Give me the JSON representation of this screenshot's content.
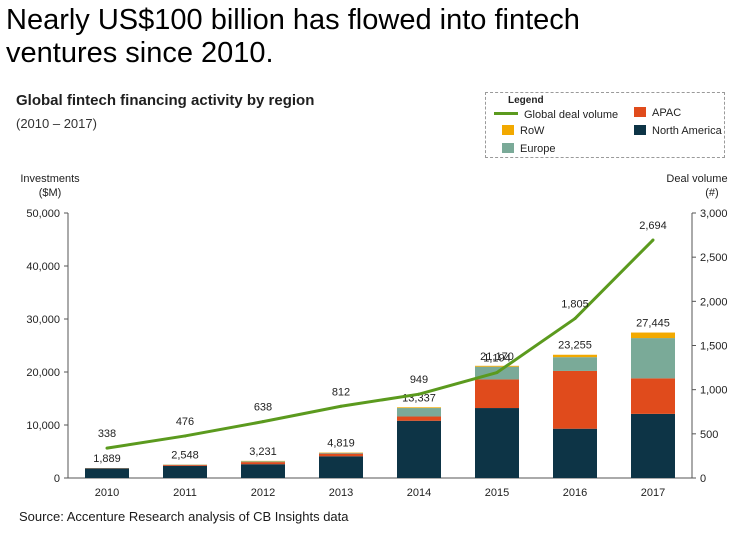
{
  "headline": {
    "line1": "Nearly US$100 billion has flowed into fintech",
    "line2": "ventures since 2010."
  },
  "source": "Source: Accenture Research analysis of CB Insights data",
  "legend": {
    "title": "Legend",
    "items": [
      {
        "label": "Global deal volume",
        "kind": "line",
        "color": "#5b9a1e"
      },
      {
        "label": "APAC",
        "kind": "box",
        "color": "#e04b1c"
      },
      {
        "label": "RoW",
        "kind": "box",
        "color": "#f2a900"
      },
      {
        "label": "North America",
        "kind": "box",
        "color": "#0d3446"
      },
      {
        "label": "Europe",
        "kind": "box",
        "color": "#7aaa98"
      }
    ]
  },
  "chart_data": {
    "type": "bar",
    "stacked": true,
    "title": "Global fintech financing activity by region",
    "subtitle": "(2010 – 2017)",
    "y_left_label": [
      "Investments",
      "($M)"
    ],
    "y_right_label": [
      "Deal volume",
      "(#)"
    ],
    "ylim_left": [
      0,
      50000
    ],
    "ylim_right": [
      0,
      3000
    ],
    "y_left_ticks": [
      "0",
      "10,000",
      "20,000",
      "30,000",
      "40,000",
      "50,000"
    ],
    "y_right_ticks": [
      "0",
      "500",
      "1,000",
      "1,500",
      "2,000",
      "2,500",
      "3,000"
    ],
    "categories": [
      "2010",
      "2011",
      "2012",
      "2013",
      "2014",
      "2015",
      "2016",
      "2017"
    ],
    "series": [
      {
        "name": "North America",
        "color": "#0d3446",
        "values": [
          1800,
          2300,
          2600,
          4100,
          10800,
          13200,
          9300,
          12100
        ]
      },
      {
        "name": "APAC",
        "color": "#e04b1c",
        "values": [
          50,
          150,
          400,
          500,
          800,
          5400,
          10900,
          6700
        ]
      },
      {
        "name": "Europe",
        "color": "#7aaa98",
        "values": [
          30,
          70,
          150,
          150,
          1600,
          2400,
          2600,
          7600
        ]
      },
      {
        "name": "RoW",
        "color": "#f2a900",
        "values": [
          9,
          28,
          81,
          69,
          137,
          170,
          455,
          1045
        ]
      }
    ],
    "totals": [
      "1,889",
      "2,548",
      "3,231",
      "4,819",
      "13,337",
      "21,170",
      "23,255",
      "27,445"
    ],
    "total_values": [
      1889,
      2548,
      3231,
      4819,
      13337,
      21170,
      23255,
      27445
    ],
    "line": {
      "name": "Global deal volume",
      "color": "#5b9a1e",
      "values": [
        338,
        476,
        638,
        812,
        949,
        1194,
        1805,
        2694
      ],
      "labels": [
        "338",
        "476",
        "638",
        "812",
        "949",
        "1,194",
        "1,805",
        "2,694"
      ]
    },
    "legend_position": "top-right",
    "grid": false
  }
}
